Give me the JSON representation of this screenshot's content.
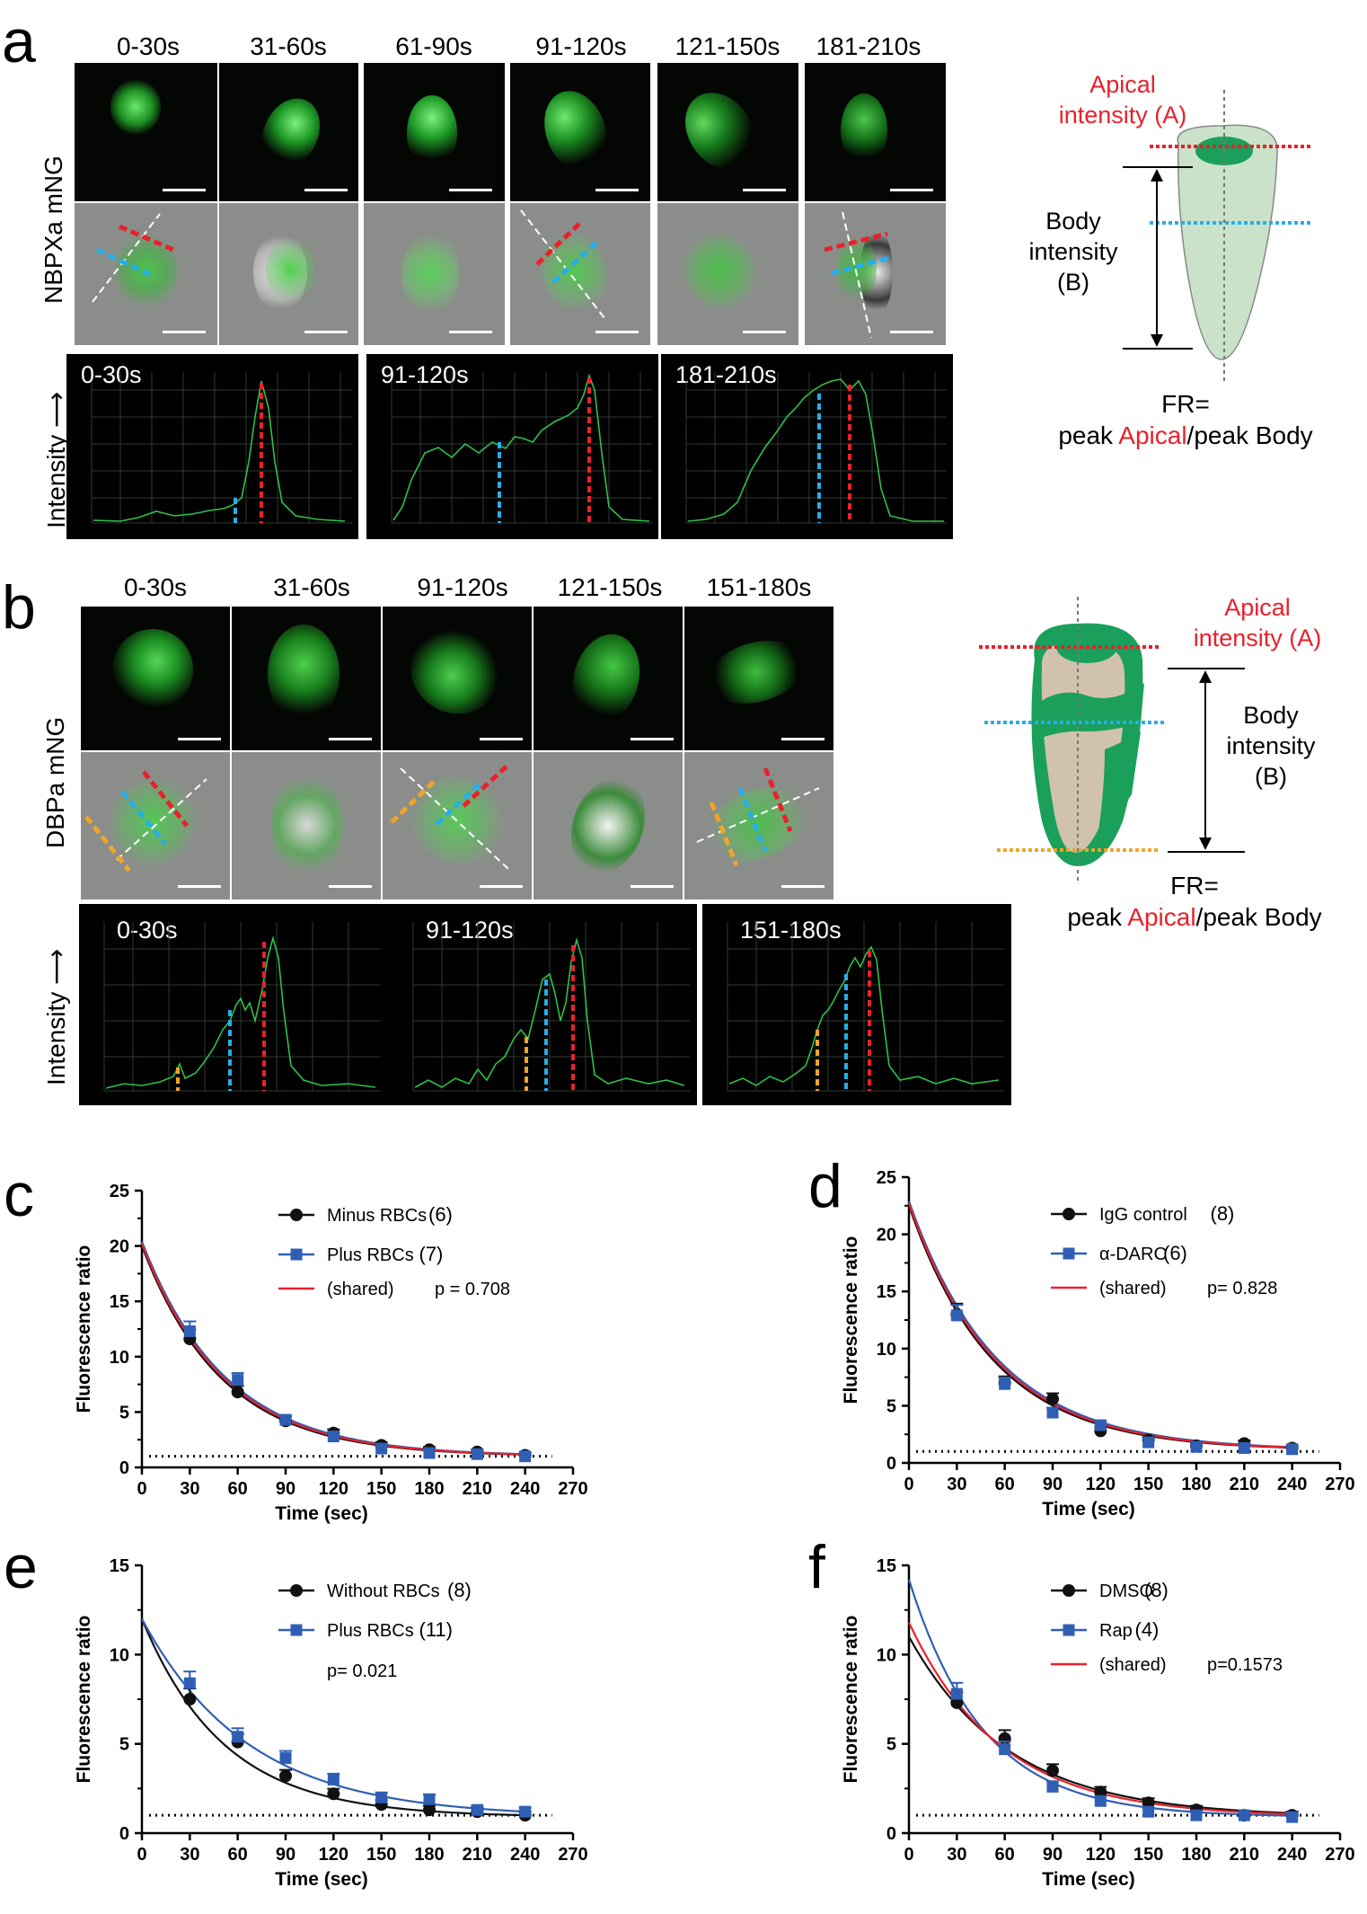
{
  "panel_a": {
    "letter": "a",
    "time_labels": [
      "0-30s",
      "31-60s",
      "61-90s",
      "91-120s",
      "121-150s",
      "181-210s"
    ],
    "row_label": "NBPXa mNG",
    "intensity_label": "Intensity",
    "profile_titles": [
      "0-30s",
      "91-120s",
      "181-210s"
    ],
    "diagram": {
      "apical_line1": "Apical",
      "apical_line2": "intensity (A)",
      "body_line1": "Body",
      "body_line2": "intensity",
      "body_line3": "(B)",
      "fr_line1": "FR=",
      "fr_pre": "peak ",
      "fr_apical": "Apical",
      "fr_post": "/peak Body"
    }
  },
  "panel_b": {
    "letter": "b",
    "time_labels": [
      "0-30s",
      "31-60s",
      "91-120s",
      "121-150s",
      "151-180s"
    ],
    "row_label": "DBPa  mNG",
    "intensity_label": "Intensity",
    "profile_titles": [
      "0-30s",
      "91-120s",
      "151-180s"
    ],
    "diagram": {
      "apical_line1": "Apical",
      "apical_line2": "intensity (A)",
      "body_line1": "Body",
      "body_line2": "intensity",
      "body_line3": "(B)",
      "fr_line1": "FR=",
      "fr_pre": "peak ",
      "fr_apical": "Apical",
      "fr_post": "/peak Body"
    }
  },
  "colors": {
    "red": "#e8212b",
    "blue": "#2f5fb5",
    "cyan": "#27aee8",
    "orange": "#f0a428",
    "green_cell": "#1aa05a"
  },
  "chart_data": [
    {
      "panel": "c",
      "type": "scatter",
      "xlabel": "Time (sec)",
      "ylabel": "Fluorescence ratio",
      "xlim": [
        0,
        270
      ],
      "ylim": [
        0,
        25
      ],
      "xticks": [
        0,
        30,
        60,
        90,
        120,
        150,
        180,
        210,
        240,
        270
      ],
      "yticks": [
        0,
        5,
        10,
        15,
        20,
        25
      ],
      "x": [
        30,
        60,
        90,
        120,
        150,
        180,
        210,
        240
      ],
      "series": [
        {
          "name": "Minus RBCs",
          "n": "(6)",
          "values": [
            11.6,
            6.8,
            4.2,
            3.1,
            2.0,
            1.6,
            1.4,
            1.1
          ]
        },
        {
          "name": "Plus RBCs",
          "n": "(7)",
          "values": [
            12.3,
            7.9,
            4.3,
            2.8,
            1.7,
            1.3,
            1.2,
            1.0
          ]
        }
      ],
      "fit_label": "(shared)",
      "p_value": "p = 0.708",
      "fit": {
        "y0": 20,
        "plateau": 1.0,
        "k": 0.0195
      }
    },
    {
      "panel": "d",
      "type": "scatter",
      "xlabel": "Time (sec)",
      "ylabel": "Fluorescence ratio",
      "xlim": [
        0,
        270
      ],
      "ylim": [
        0,
        25
      ],
      "xticks": [
        0,
        30,
        60,
        90,
        120,
        150,
        180,
        210,
        240,
        270
      ],
      "yticks": [
        0,
        5,
        10,
        15,
        20,
        25
      ],
      "x": [
        30,
        60,
        90,
        120,
        150,
        180,
        210,
        240
      ],
      "series": [
        {
          "name": "IgG control",
          "n": "(8)",
          "values": [
            13.0,
            7.0,
            5.6,
            2.8,
            2.0,
            1.5,
            1.7,
            1.3
          ]
        },
        {
          "name": "α-DARC",
          "n": "(6)",
          "values": [
            12.9,
            6.9,
            4.4,
            3.3,
            1.8,
            1.4,
            1.3,
            1.2
          ]
        }
      ],
      "fit_label": "(shared)",
      "p_value": "p= 0.828",
      "fit": {
        "y0": 22.5,
        "plateau": 1.1,
        "k": 0.0185
      }
    },
    {
      "panel": "e",
      "type": "scatter",
      "xlabel": "Time (sec)",
      "ylabel": "Fluorescence ratio",
      "xlim": [
        0,
        270
      ],
      "ylim": [
        0,
        15
      ],
      "xticks": [
        0,
        30,
        60,
        90,
        120,
        150,
        180,
        210,
        240,
        270
      ],
      "yticks": [
        0,
        5,
        10,
        15
      ],
      "x": [
        30,
        60,
        90,
        120,
        150,
        180,
        210,
        240
      ],
      "series": [
        {
          "name": "Without RBCs",
          "n": "(8)",
          "values": [
            7.5,
            5.1,
            3.2,
            2.2,
            1.6,
            1.3,
            1.2,
            1.0
          ]
        },
        {
          "name": "Plus RBCs",
          "n": "(11)",
          "values": [
            8.4,
            5.4,
            4.2,
            3.0,
            2.0,
            1.9,
            1.3,
            1.2
          ]
        }
      ],
      "p_value": "p= 0.021",
      "fit": {
        "y0": 12.0,
        "plateau": 0.9,
        "k": 0.0165
      }
    },
    {
      "panel": "f",
      "type": "scatter",
      "xlabel": "Time (sec)",
      "ylabel": "Fluorescence ratio",
      "xlim": [
        0,
        270
      ],
      "ylim": [
        0,
        15
      ],
      "xticks": [
        0,
        30,
        60,
        90,
        120,
        150,
        180,
        210,
        240,
        270
      ],
      "yticks": [
        0,
        5,
        10,
        15
      ],
      "x": [
        30,
        60,
        90,
        120,
        150,
        180,
        210,
        240
      ],
      "series": [
        {
          "name": "DMSO",
          "n": "(8)",
          "values": [
            7.3,
            5.3,
            3.5,
            2.3,
            1.7,
            1.3,
            1.0,
            1.0
          ]
        },
        {
          "name": "Rap",
          "n": "(4)",
          "values": [
            7.8,
            4.7,
            2.6,
            1.8,
            1.2,
            1.0,
            1.0,
            0.9
          ]
        }
      ],
      "fit_label": "(shared)",
      "p_value": "p=0.1573",
      "fit": {
        "y0": 11.8,
        "plateau": 0.9,
        "k": 0.0165
      }
    }
  ]
}
